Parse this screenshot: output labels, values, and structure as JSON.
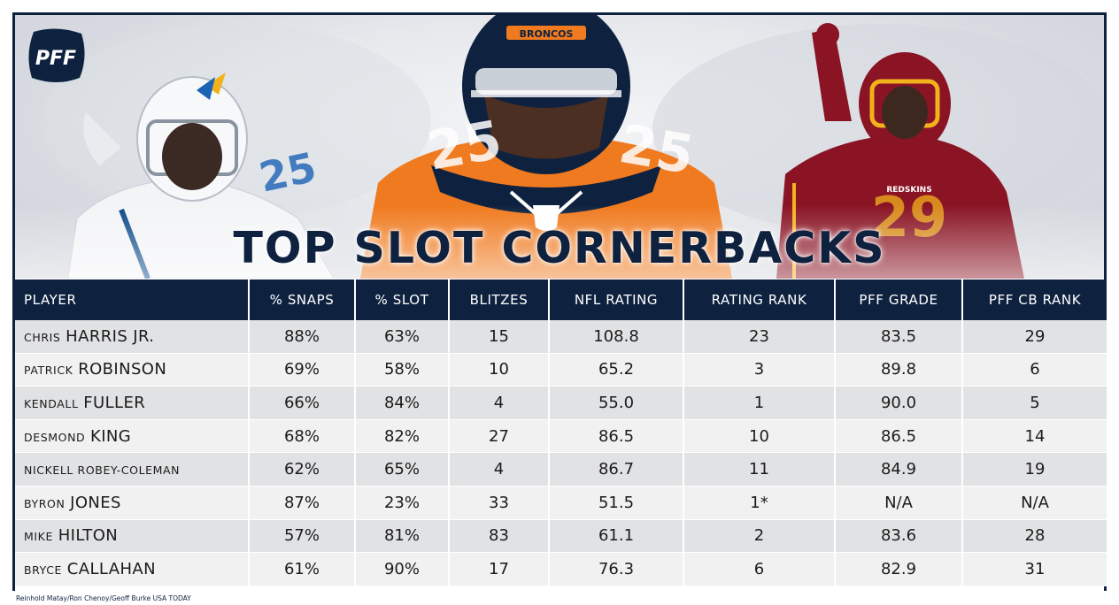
{
  "brand": {
    "logo_text": "PFF",
    "navy": "#0e2240"
  },
  "title": "TOP SLOT CORNERBACKS",
  "hero": {
    "helmet_text": "BRONCOS",
    "player_left_number": "25",
    "player_center_number": "25",
    "player_right_number": "29",
    "player_right_text": "REDSKINS"
  },
  "chart_data": {
    "type": "table",
    "title": "TOP SLOT CORNERBACKS",
    "columns": [
      "PLAYER",
      "% SNAPS",
      "% SLOT",
      "BLITZES",
      "NFL RATING",
      "RATING RANK",
      "PFF GRADE",
      "PFF CB RANK"
    ],
    "rows": [
      {
        "first": "CHRIS",
        "last": "HARRIS JR.",
        "snaps": "88%",
        "slot": "63%",
        "blitzes": "15",
        "nfl_rating": "108.8",
        "rating_rank": "23",
        "pff_grade": "83.5",
        "cb_rank": "29"
      },
      {
        "first": "PATRICK",
        "last": "ROBINSON",
        "snaps": "69%",
        "slot": "58%",
        "blitzes": "10",
        "nfl_rating": "65.2",
        "rating_rank": "3",
        "pff_grade": "89.8",
        "cb_rank": "6"
      },
      {
        "first": "KENDALL",
        "last": "FULLER",
        "snaps": "66%",
        "slot": "84%",
        "blitzes": "4",
        "nfl_rating": "55.0",
        "rating_rank": "1",
        "pff_grade": "90.0",
        "cb_rank": "5"
      },
      {
        "first": "DESMOND",
        "last": "KING",
        "snaps": "68%",
        "slot": "82%",
        "blitzes": "27",
        "nfl_rating": "86.5",
        "rating_rank": "10",
        "pff_grade": "86.5",
        "cb_rank": "14"
      },
      {
        "first": "NICKELL ROBEY-COLEMAN",
        "last": "",
        "snaps": "62%",
        "slot": "65%",
        "blitzes": "4",
        "nfl_rating": "86.7",
        "rating_rank": "11",
        "pff_grade": "84.9",
        "cb_rank": "19"
      },
      {
        "first": "BYRON",
        "last": "JONES",
        "snaps": "87%",
        "slot": "23%",
        "blitzes": "33",
        "nfl_rating": "51.5",
        "rating_rank": "1*",
        "pff_grade": "N/A",
        "cb_rank": "N/A"
      },
      {
        "first": "MIKE",
        "last": "HILTON",
        "snaps": "57%",
        "slot": "81%",
        "blitzes": "83",
        "nfl_rating": "61.1",
        "rating_rank": "2",
        "pff_grade": "83.6",
        "cb_rank": "28"
      },
      {
        "first": "BRYCE",
        "last": "CALLAHAN",
        "snaps": "61%",
        "slot": "90%",
        "blitzes": "17",
        "nfl_rating": "76.3",
        "rating_rank": "6",
        "pff_grade": "82.9",
        "cb_rank": "31"
      }
    ]
  },
  "credit": "Reinhold Matay/Ron Chenoy/Geoff Burke USA TODAY"
}
